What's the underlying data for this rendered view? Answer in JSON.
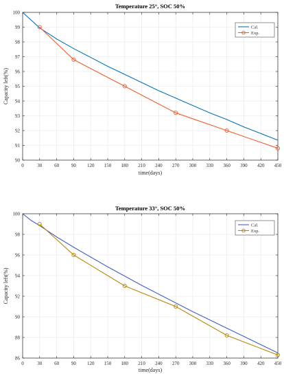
{
  "chart_data": [
    {
      "type": "line",
      "title": "Temperature 25°, SOC 50%",
      "xlabel": "time(days)",
      "ylabel": "Capacity left(%)",
      "xlim": [
        0,
        450
      ],
      "ylim": [
        90,
        100
      ],
      "xticks": [
        0,
        30,
        60,
        90,
        120,
        150,
        180,
        210,
        240,
        270,
        300,
        330,
        360,
        390,
        420,
        450
      ],
      "yticks": [
        90,
        91,
        92,
        93,
        94,
        95,
        96,
        97,
        98,
        99,
        100
      ],
      "grid": true,
      "legend_position": "top-right",
      "series": [
        {
          "name": "Cal.",
          "color": "#0072BD",
          "marker": "none",
          "x": [
            0,
            30,
            60,
            90,
            120,
            150,
            180,
            210,
            240,
            270,
            300,
            330,
            360,
            390,
            420,
            450
          ],
          "y": [
            100,
            98.95,
            98.2,
            97.55,
            96.95,
            96.35,
            95.8,
            95.25,
            94.7,
            94.2,
            93.7,
            93.2,
            92.75,
            92.25,
            91.8,
            91.35
          ]
        },
        {
          "name": "Exp.",
          "color": "#F25A2C",
          "marker": "circle",
          "x": [
            30,
            90,
            180,
            270,
            360,
            450
          ],
          "y": [
            99.0,
            96.8,
            95.0,
            93.2,
            92.0,
            90.8
          ]
        }
      ]
    },
    {
      "type": "line",
      "title": "Temperature 33°, SOC 50%",
      "xlabel": "time(days)",
      "ylabel": "Capacity left(%)",
      "xlim": [
        0,
        450
      ],
      "ylim": [
        86,
        100
      ],
      "xticks": [
        0,
        30,
        60,
        90,
        120,
        150,
        180,
        210,
        240,
        270,
        300,
        330,
        360,
        390,
        420,
        450
      ],
      "yticks": [
        86,
        88,
        90,
        92,
        94,
        96,
        98,
        100
      ],
      "grid": true,
      "legend_position": "top-right",
      "series": [
        {
          "name": "Cal.",
          "color": "#3F5FC7",
          "marker": "none",
          "x": [
            0,
            15,
            30,
            60,
            90,
            120,
            150,
            180,
            210,
            240,
            270,
            300,
            330,
            360,
            390,
            420,
            450
          ],
          "y": [
            100,
            99.35,
            98.85,
            97.75,
            96.75,
            95.8,
            94.85,
            93.95,
            93.05,
            92.2,
            91.35,
            90.5,
            89.7,
            88.9,
            88.1,
            87.3,
            86.5
          ]
        },
        {
          "name": "Exp.",
          "color": "#B8860B",
          "marker": "circle",
          "x": [
            30,
            90,
            180,
            270,
            360,
            450
          ],
          "y": [
            99.0,
            96.0,
            93.0,
            91.0,
            88.2,
            86.3
          ]
        }
      ]
    }
  ]
}
